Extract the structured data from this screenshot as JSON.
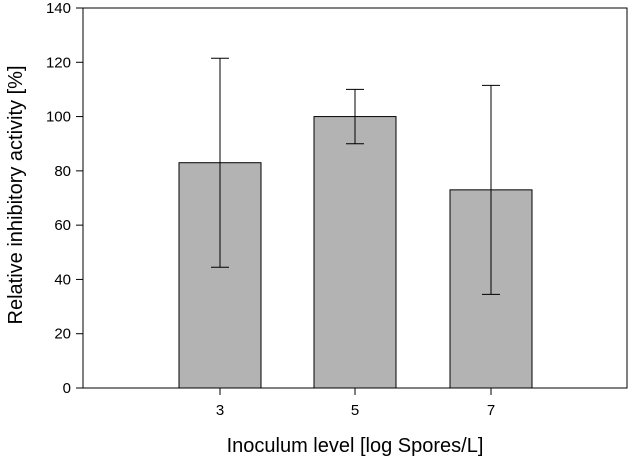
{
  "chart_data": {
    "type": "bar",
    "xlabel": "Inoculum level [log Spores/L]",
    "ylabel": "Relative inhibitory activity [%]",
    "categories": [
      "3",
      "5",
      "7"
    ],
    "values": [
      83,
      100,
      73
    ],
    "error_bars": [
      {
        "low": 44.5,
        "high": 121.5
      },
      {
        "low": 90,
        "high": 110
      },
      {
        "low": 34.5,
        "high": 111.5
      }
    ],
    "ylim": [
      0,
      140
    ],
    "yticks": [
      "0",
      "20",
      "40",
      "60",
      "80",
      "100",
      "120",
      "140"
    ],
    "grid": false,
    "bar_color": "#b3b3b3"
  }
}
